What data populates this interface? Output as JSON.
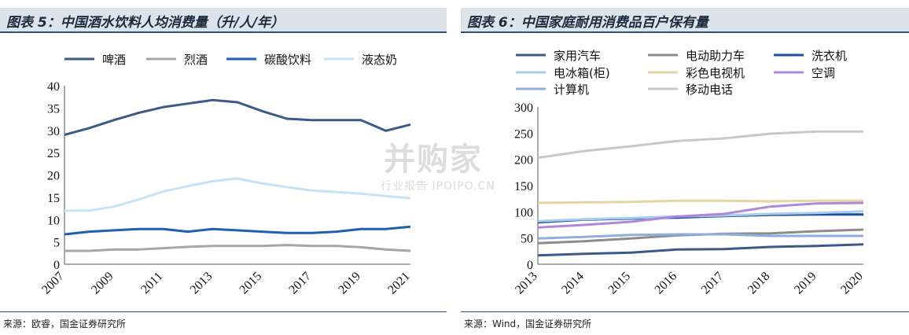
{
  "left": {
    "title": "图表 5：中国酒水饮料人均消费量（升/人/年）",
    "source": "来源：欧睿，国金证券研究所"
  },
  "right": {
    "title": "图表 6：中国家庭耐用消费品百户保有量",
    "source": "来源：Wind，国金证券研究所"
  },
  "watermark": {
    "main": "并购家",
    "sub": "行业报告 IPOIPO.CN"
  },
  "chart_data": [
    {
      "type": "line",
      "title": "中国酒水饮料人均消费量（升/人/年）",
      "x": [
        "2007",
        "2008",
        "2009",
        "2010",
        "2011",
        "2012",
        "2013",
        "2014",
        "2015",
        "2016",
        "2017",
        "2018",
        "2019",
        "2020",
        "2021"
      ],
      "xticks": [
        "2007",
        "2009",
        "2011",
        "2013",
        "2015",
        "2017",
        "2019",
        "2021"
      ],
      "ylim": [
        0,
        40
      ],
      "yticks": [
        0,
        5,
        10,
        15,
        20,
        25,
        30,
        35,
        40
      ],
      "legend_position": "top",
      "series": [
        {
          "name": "啤酒",
          "color": "#3a5a8a",
          "values": [
            29.0,
            30.5,
            32.3,
            33.9,
            35.2,
            36.0,
            36.8,
            36.3,
            34.3,
            32.6,
            32.3,
            32.3,
            32.3,
            29.9,
            31.3
          ]
        },
        {
          "name": "烈酒",
          "color": "#a6a6a6",
          "values": [
            3.0,
            3.0,
            3.3,
            3.3,
            3.6,
            3.9,
            4.1,
            4.1,
            4.1,
            4.3,
            4.1,
            4.1,
            3.8,
            3.3,
            3.0
          ]
        },
        {
          "name": "碳酸饮料",
          "color": "#1f5fb0",
          "values": [
            6.7,
            7.3,
            7.6,
            7.9,
            7.9,
            7.3,
            7.9,
            7.6,
            7.3,
            7.0,
            7.0,
            7.3,
            7.9,
            7.9,
            8.4
          ]
        },
        {
          "name": "液态奶",
          "color": "#c5e3f5",
          "values": [
            12.0,
            12.0,
            12.9,
            14.5,
            16.3,
            17.5,
            18.6,
            19.2,
            18.1,
            17.3,
            16.5,
            16.2,
            15.8,
            15.3,
            14.8
          ]
        }
      ]
    },
    {
      "type": "line",
      "title": "中国家庭耐用消费品百户保有量",
      "x": [
        "2013",
        "2014",
        "2015",
        "2016",
        "2017",
        "2018",
        "2019",
        "2020"
      ],
      "ylim": [
        0,
        300
      ],
      "yticks": [
        0,
        50,
        100,
        150,
        200,
        250,
        300
      ],
      "legend_position": "top",
      "series": [
        {
          "name": "家用汽车",
          "color": "#3a5a8a",
          "values": [
            17,
            20,
            22,
            28,
            29,
            33,
            35,
            38
          ]
        },
        {
          "name": "电动助力车",
          "color": "#8c8c8c",
          "values": [
            40,
            44,
            49,
            55,
            58,
            59,
            63,
            66
          ]
        },
        {
          "name": "洗衣机",
          "color": "#1a4f9c",
          "values": [
            80,
            85,
            87,
            89,
            92,
            94,
            95,
            95
          ]
        },
        {
          "name": "电冰箱(柜)",
          "color": "#a9cde8",
          "values": [
            82,
            86,
            88,
            91,
            93,
            96,
            98,
            101
          ]
        },
        {
          "name": "彩色电视机",
          "color": "#e6d3a0",
          "values": [
            117,
            118,
            119,
            121,
            121,
            120,
            121,
            121
          ]
        },
        {
          "name": "空调",
          "color": "#b088d8",
          "values": [
            70,
            75,
            81,
            91,
            96,
            110,
            116,
            117
          ]
        },
        {
          "name": "计算机",
          "color": "#8faee0",
          "values": [
            49,
            52,
            56,
            57,
            57,
            54,
            54,
            54
          ]
        },
        {
          "name": "移动电话",
          "color": "#c8c8c8",
          "values": [
            203,
            216,
            225,
            235,
            240,
            249,
            253,
            253
          ]
        }
      ]
    }
  ]
}
